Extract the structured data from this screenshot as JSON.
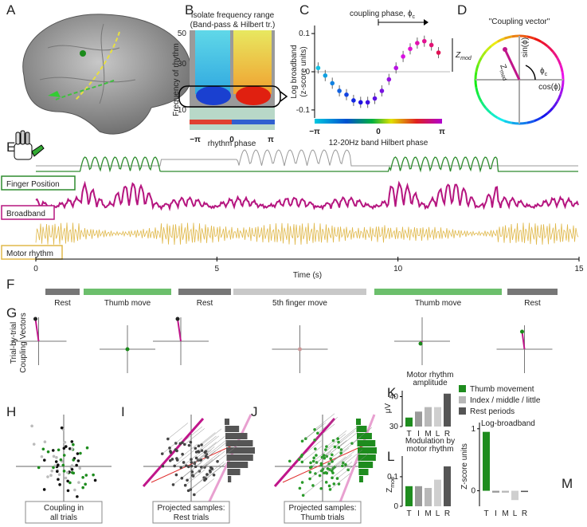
{
  "panel_labels": [
    "A",
    "B",
    "C",
    "D",
    "E",
    "F",
    "G",
    "H",
    "I",
    "J",
    "K",
    "L",
    "M"
  ],
  "B": {
    "title": [
      "Isolate frequency range",
      "(Band-pass & Hilbert tr.)"
    ],
    "ylabel": "Frequency of rhythm",
    "yticks": [
      50,
      30,
      10
    ],
    "xticks": [
      "−π",
      0,
      "π"
    ],
    "xlabel": "rhythm phase"
  },
  "C": {
    "title": "coupling phase, ϕ",
    "title_sub": "c",
    "ylabel": [
      "Log broadband",
      "(z-score units)"
    ],
    "ylim": [
      -0.12,
      0.12
    ],
    "yticks": [
      0.1,
      0,
      -0.1
    ],
    "xticks": [
      "−π",
      0,
      "π"
    ],
    "xlabel": "12-20Hz band Hilbert phase",
    "zmod": "Z",
    "zmod_sub": "mod",
    "points": [
      0.01,
      -0.01,
      -0.03,
      -0.05,
      -0.06,
      -0.075,
      -0.08,
      -0.08,
      -0.07,
      -0.05,
      -0.02,
      0.01,
      0.04,
      0.06,
      0.075,
      0.08,
      0.07,
      0.05
    ]
  },
  "D": {
    "title": "\"Coupling vector\"",
    "sin": "sin(ϕ)",
    "cos": "cos(ϕ)",
    "phi": "ϕ",
    "phi_sub": "c",
    "z": "Z",
    "z_sub": "mod"
  },
  "E": {
    "labels": [
      "Finger Position",
      "Broadband",
      "Motor rhythm"
    ],
    "label_colors": [
      "#2e8b2e",
      "#b5157f",
      "#e0b84a"
    ],
    "xlim": [
      0,
      15
    ],
    "xticks": [
      0,
      5,
      10,
      15
    ],
    "xlabel": "Time (s)"
  },
  "F": {
    "segments": [
      {
        "label": "Rest",
        "color": "#777777"
      },
      {
        "label": "Thumb move",
        "color": "#6cbf6c"
      },
      {
        "label": "Rest",
        "color": "#777777"
      },
      {
        "label": "5th finger move",
        "color": "#c8c8c8"
      },
      {
        "label": "Thumb move",
        "color": "#6cbf6c"
      },
      {
        "label": "Rest",
        "color": "#777777"
      }
    ]
  },
  "G": {
    "ylabel": [
      "Trial-by-trial",
      "Coupling Vectors"
    ]
  },
  "H": {
    "caption": [
      "Coupling in",
      "all trials"
    ]
  },
  "I": {
    "caption": [
      "Projected samples:",
      "Rest trials"
    ]
  },
  "J": {
    "caption": [
      "Projected samples:",
      "Thumb trials"
    ]
  },
  "bar_colors": [
    "#1e8c1e",
    "#9a9a9a",
    "#b8b8b8",
    "#cfcfcf",
    "#555555"
  ],
  "K": {
    "title": [
      "Motor rhythm",
      "amplitude"
    ],
    "ylabel": "μV",
    "ylim": [
      30,
      42
    ],
    "yticks": [
      40,
      30
    ],
    "categories": [
      "T",
      "I",
      "M",
      "L",
      "R"
    ],
    "values": [
      33,
      35,
      36.5,
      36.5,
      41
    ]
  },
  "L": {
    "title": [
      "Modulation by",
      "motor rhythm"
    ],
    "ylabel": "Z",
    "ylabel_sub": "mod",
    "ylim": [
      0,
      0.17
    ],
    "yticks": [
      0.1,
      0
    ],
    "categories": [
      "T",
      "I",
      "M",
      "L",
      "R"
    ],
    "values": [
      0.068,
      0.068,
      0.062,
      0.09,
      0.135
    ]
  },
  "M": {
    "title": "Log-broadband",
    "ylabel": "Z-score units",
    "ylim": [
      -0.25,
      1.1
    ],
    "yticks": [
      1,
      0
    ],
    "categories": [
      "T",
      "I",
      "M",
      "L",
      "R"
    ],
    "values": [
      0.95,
      -0.03,
      -0.03,
      -0.15,
      -0.02
    ],
    "legend": [
      {
        "name": "Thumb movement",
        "color": "#1e8c1e"
      },
      {
        "name": "Index / middle / little",
        "color": "#b8b8b8"
      },
      {
        "name": "Rest periods",
        "color": "#555555"
      }
    ]
  }
}
